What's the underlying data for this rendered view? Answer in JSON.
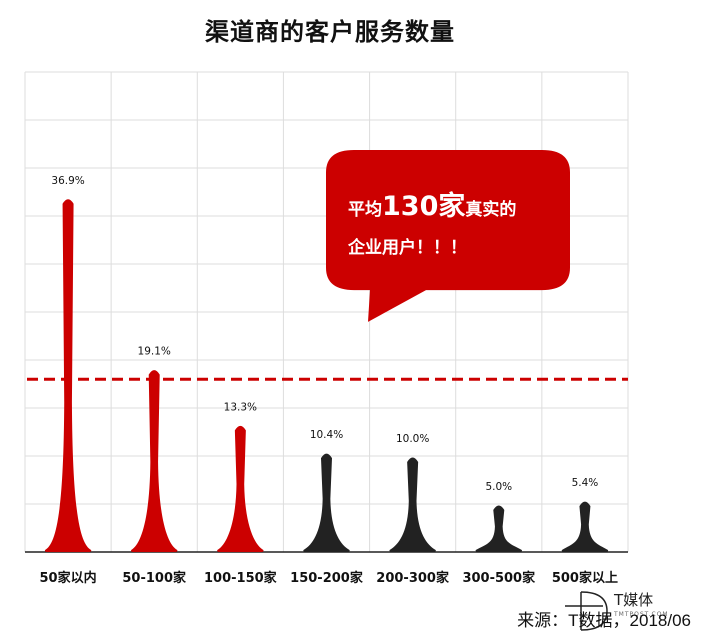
{
  "chart_data": {
    "type": "bar",
    "title": "渠道商的客户服务数量",
    "categories": [
      "50家以内",
      "50-100家",
      "100-150家",
      "150-200家",
      "200-300家",
      "300-500家",
      "500家以上"
    ],
    "values": [
      36.9,
      19.1,
      13.3,
      10.4,
      10.0,
      5.0,
      5.4
    ],
    "data_labels": [
      "36.9%",
      "19.1%",
      "13.3%",
      "10.4%",
      "10.0%",
      "5.0%",
      "5.4%"
    ],
    "bar_colors": [
      "#cc0000",
      "#cc0000",
      "#cc0000",
      "#222222",
      "#222222",
      "#222222",
      "#222222"
    ],
    "ylim": [
      0,
      50
    ],
    "grid": true,
    "reference_line": {
      "value": 18,
      "color": "#cc0000",
      "style": "dashed"
    },
    "xlabel": "",
    "ylabel": ""
  },
  "callout": {
    "prefix": "平均",
    "number": "130家",
    "suffix": "真实的",
    "line2": "企业用户！！！",
    "color": "#cc0000"
  },
  "source": "来源：T数据，2018/06",
  "logo": {
    "name": "T媒体",
    "sub": "TMTPOST.COM"
  }
}
